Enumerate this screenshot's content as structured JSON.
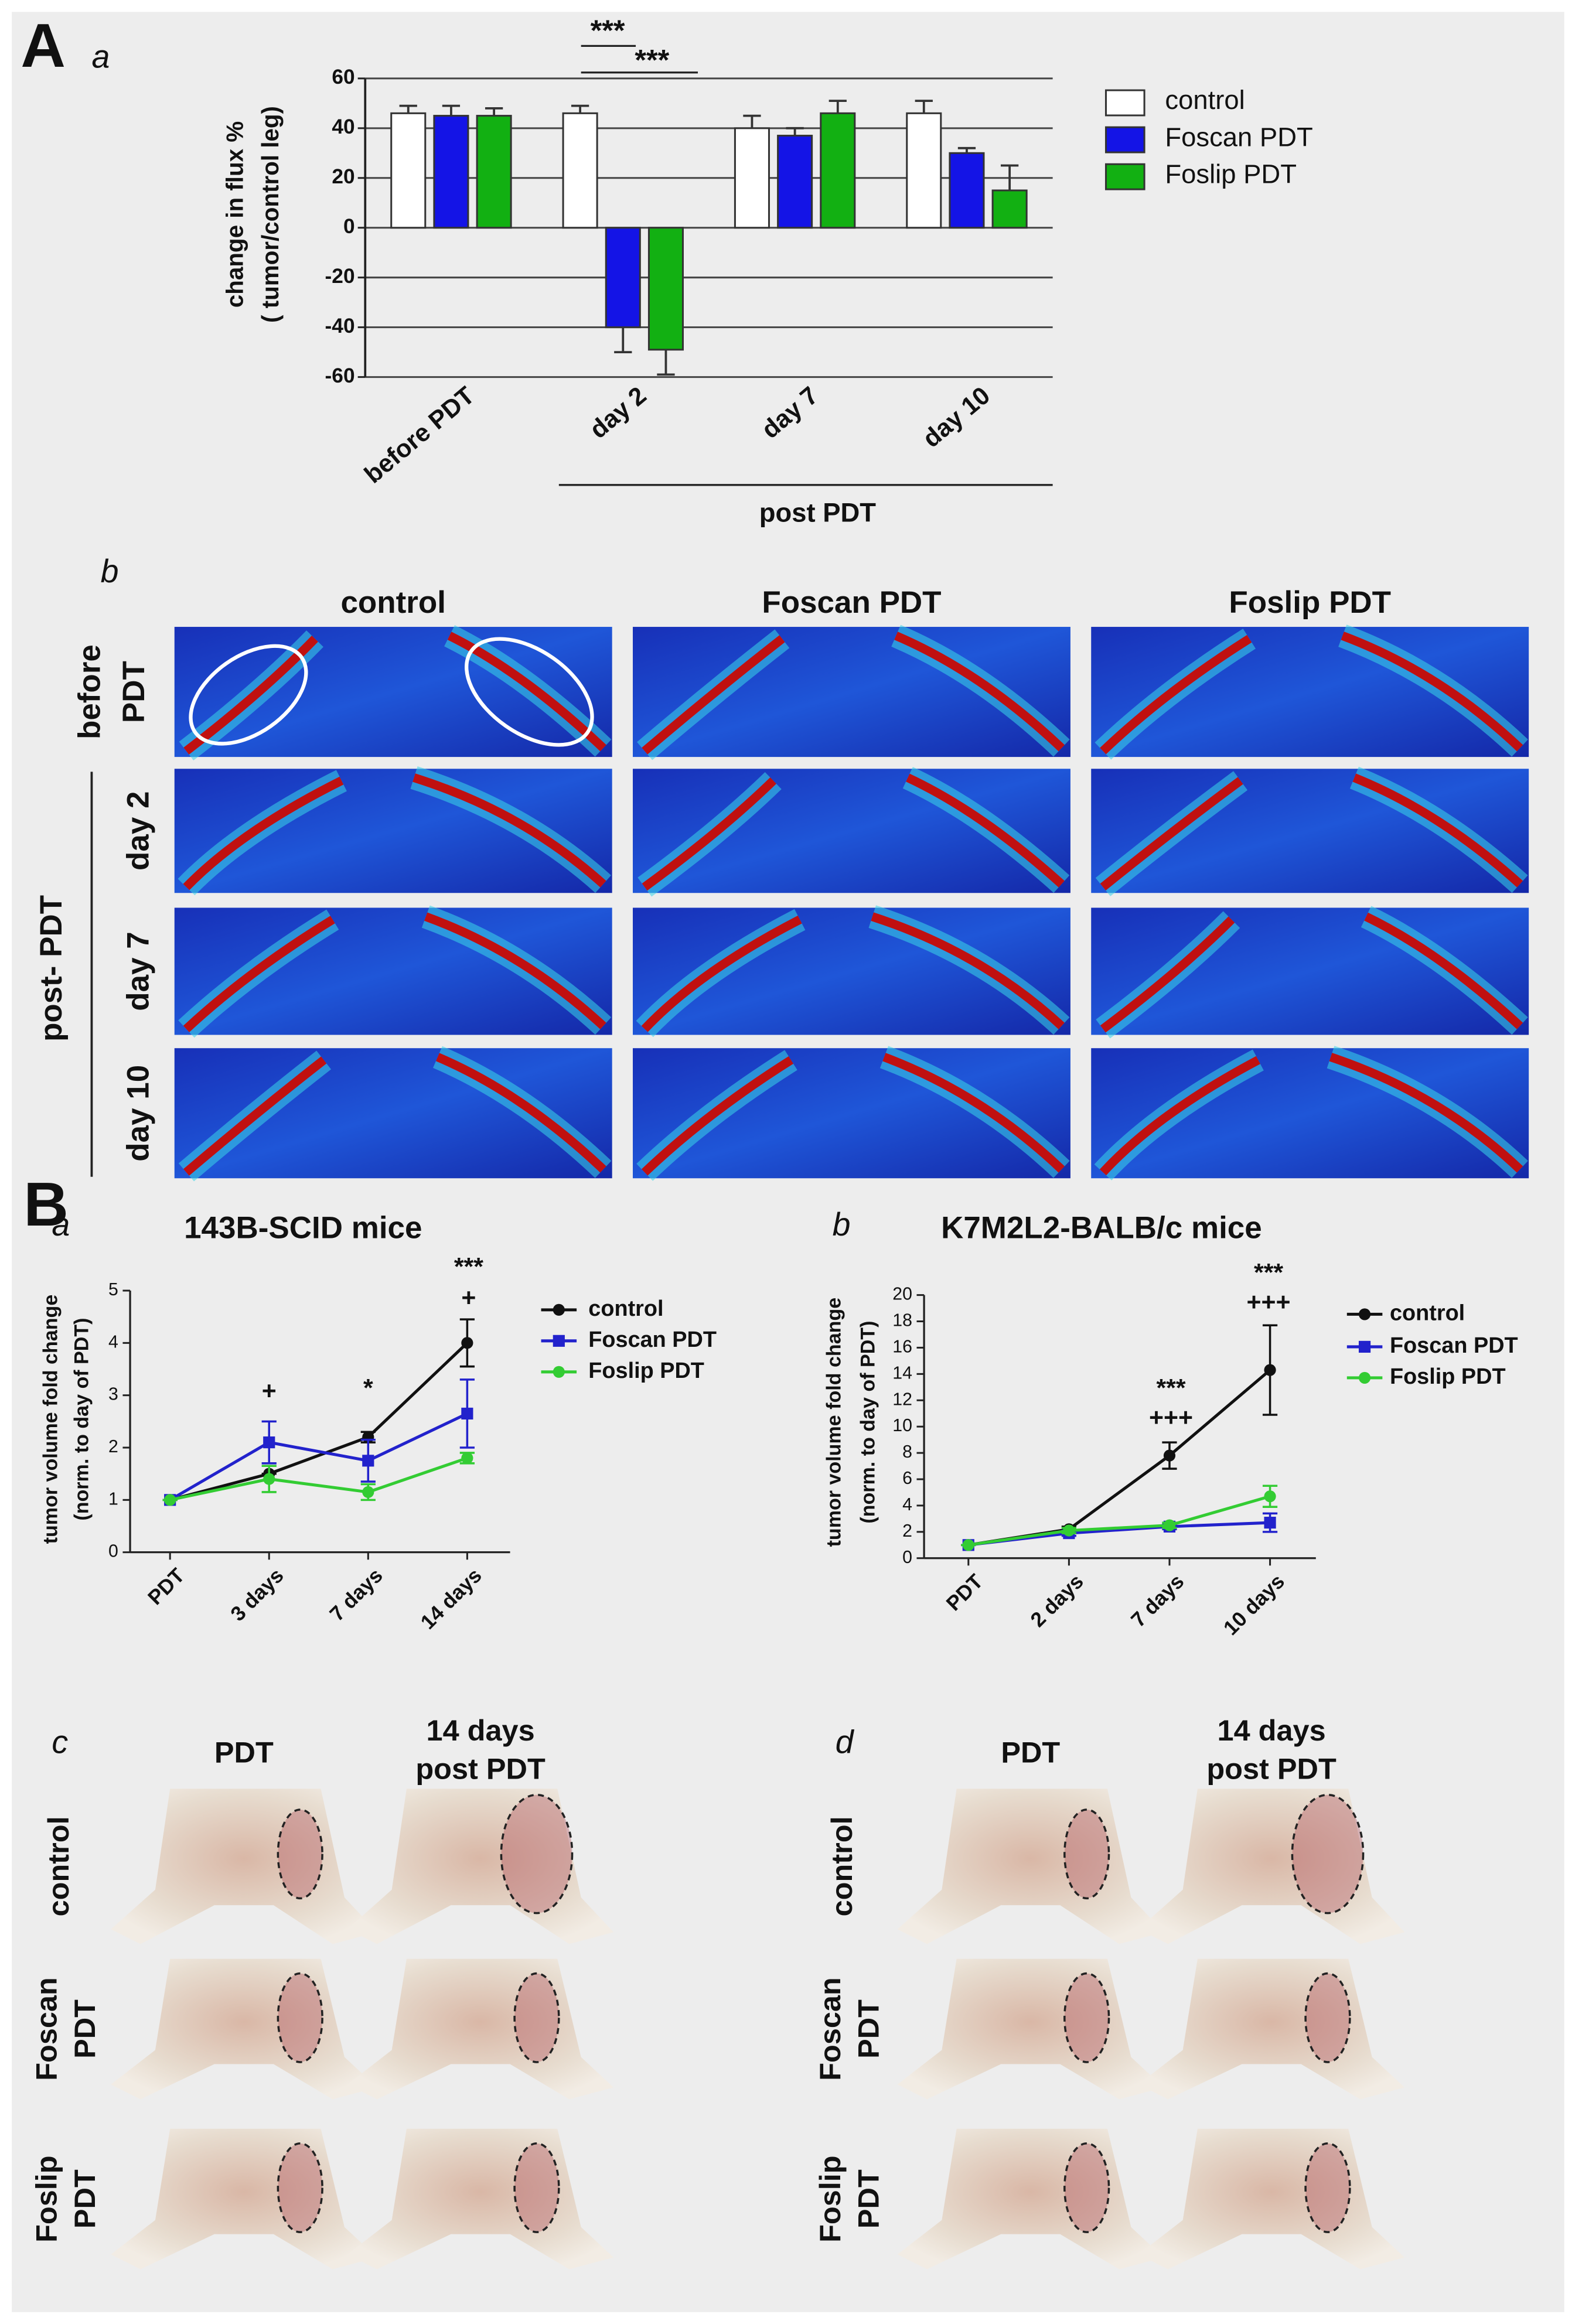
{
  "figure_labels": [
    "A",
    "B"
  ],
  "chart_data": [
    {
      "type": "bar",
      "panel": "a",
      "ylabel": [
        "change in flux %",
        "( tumor/control leg)"
      ],
      "categories": [
        "before PDT",
        "day 2",
        "day 7",
        "day 10"
      ],
      "group_label": "post PDT",
      "annotations": [
        "***",
        "***"
      ],
      "ylim": [
        -60,
        60
      ],
      "yticks": [
        -60,
        -40,
        -20,
        0,
        20,
        40,
        60
      ],
      "grid": true,
      "legend": "right",
      "series": [
        {
          "name": "control",
          "color": "#ffffff",
          "values": [
            46,
            46,
            40,
            46
          ],
          "errors": [
            3,
            3,
            5,
            5
          ]
        },
        {
          "name": "Foscan PDT",
          "color": "#1414e6",
          "values": [
            45,
            -40,
            37,
            30
          ],
          "errors": [
            4,
            10,
            3,
            2
          ]
        },
        {
          "name": "Foslip PDT",
          "color": "#12b012",
          "values": [
            45,
            -49,
            46,
            15
          ],
          "errors": [
            3,
            10,
            5,
            10
          ]
        }
      ]
    },
    {
      "type": "line",
      "panel": "a",
      "title": "143B-SCID mice",
      "ylabel": [
        "tumor volume fold change",
        "(norm. to day of PDT)"
      ],
      "categories": [
        "PDT",
        "3 days",
        "7 days",
        "14 days"
      ],
      "annotations": [
        "+",
        "*",
        "+",
        "***"
      ],
      "ylim": [
        0,
        5
      ],
      "yticks": [
        0,
        1,
        2,
        3,
        4,
        5
      ],
      "legend": "right",
      "series": [
        {
          "name": "control",
          "color": "#111111",
          "marker": "circle",
          "values": [
            1,
            1.5,
            2.2,
            4.0
          ],
          "errors": [
            0,
            0,
            0.1,
            0.45
          ]
        },
        {
          "name": "Foscan PDT",
          "color": "#2222cc",
          "marker": "square",
          "values": [
            1,
            2.1,
            1.75,
            2.65
          ],
          "errors": [
            0,
            0.4,
            0.4,
            0.65
          ]
        },
        {
          "name": "Foslip PDT",
          "color": "#33cc33",
          "marker": "circle",
          "values": [
            1,
            1.4,
            1.15,
            1.8
          ],
          "errors": [
            0,
            0.25,
            0.15,
            0.1
          ]
        }
      ]
    },
    {
      "type": "line",
      "panel": "b",
      "title": "K7M2L2-BALB/c mice",
      "ylabel": [
        "tumor volume fold change",
        "(norm. to day of PDT)"
      ],
      "categories": [
        "PDT",
        "2 days",
        "7 days",
        "10 days"
      ],
      "annotations": [
        "***",
        "+++",
        "***",
        "+++"
      ],
      "ylim": [
        0,
        20
      ],
      "yticks": [
        0,
        2,
        4,
        6,
        8,
        10,
        12,
        14,
        16,
        18,
        20
      ],
      "legend": "right",
      "series": [
        {
          "name": "control",
          "color": "#111111",
          "marker": "circle",
          "values": [
            1,
            2.2,
            7.8,
            14.3
          ],
          "errors": [
            0,
            0.2,
            1,
            3.4
          ]
        },
        {
          "name": "Foscan PDT",
          "color": "#2222cc",
          "marker": "square",
          "values": [
            1,
            1.9,
            2.4,
            2.7
          ],
          "errors": [
            0,
            0.2,
            0.2,
            0.7
          ]
        },
        {
          "name": "Foslip PDT",
          "color": "#33cc33",
          "marker": "circle",
          "values": [
            1,
            2.1,
            2.5,
            4.7
          ],
          "errors": [
            0,
            0.2,
            0.2,
            0.8
          ]
        }
      ]
    }
  ],
  "heatmaps": {
    "label": "b",
    "columns": [
      "control",
      "Foscan PDT",
      "Foslip PDT"
    ],
    "row_before": [
      "before",
      "PDT"
    ],
    "row_group": "post- PDT",
    "rows": [
      "day 2",
      "day 7",
      "day 10"
    ]
  },
  "photos": [
    {
      "label": "c",
      "columns": [
        [
          "PDT"
        ],
        [
          "14 days",
          "post PDT"
        ]
      ],
      "rows": [
        [
          "control"
        ],
        [
          "Foscan",
          "PDT"
        ],
        [
          "Foslip",
          "PDT"
        ]
      ]
    },
    {
      "label": "d",
      "columns": [
        [
          "PDT"
        ],
        [
          "14 days",
          "post PDT"
        ]
      ],
      "rows": [
        [
          "control"
        ],
        [
          "Foscan",
          "PDT"
        ],
        [
          "Foslip",
          "PDT"
        ]
      ]
    }
  ]
}
